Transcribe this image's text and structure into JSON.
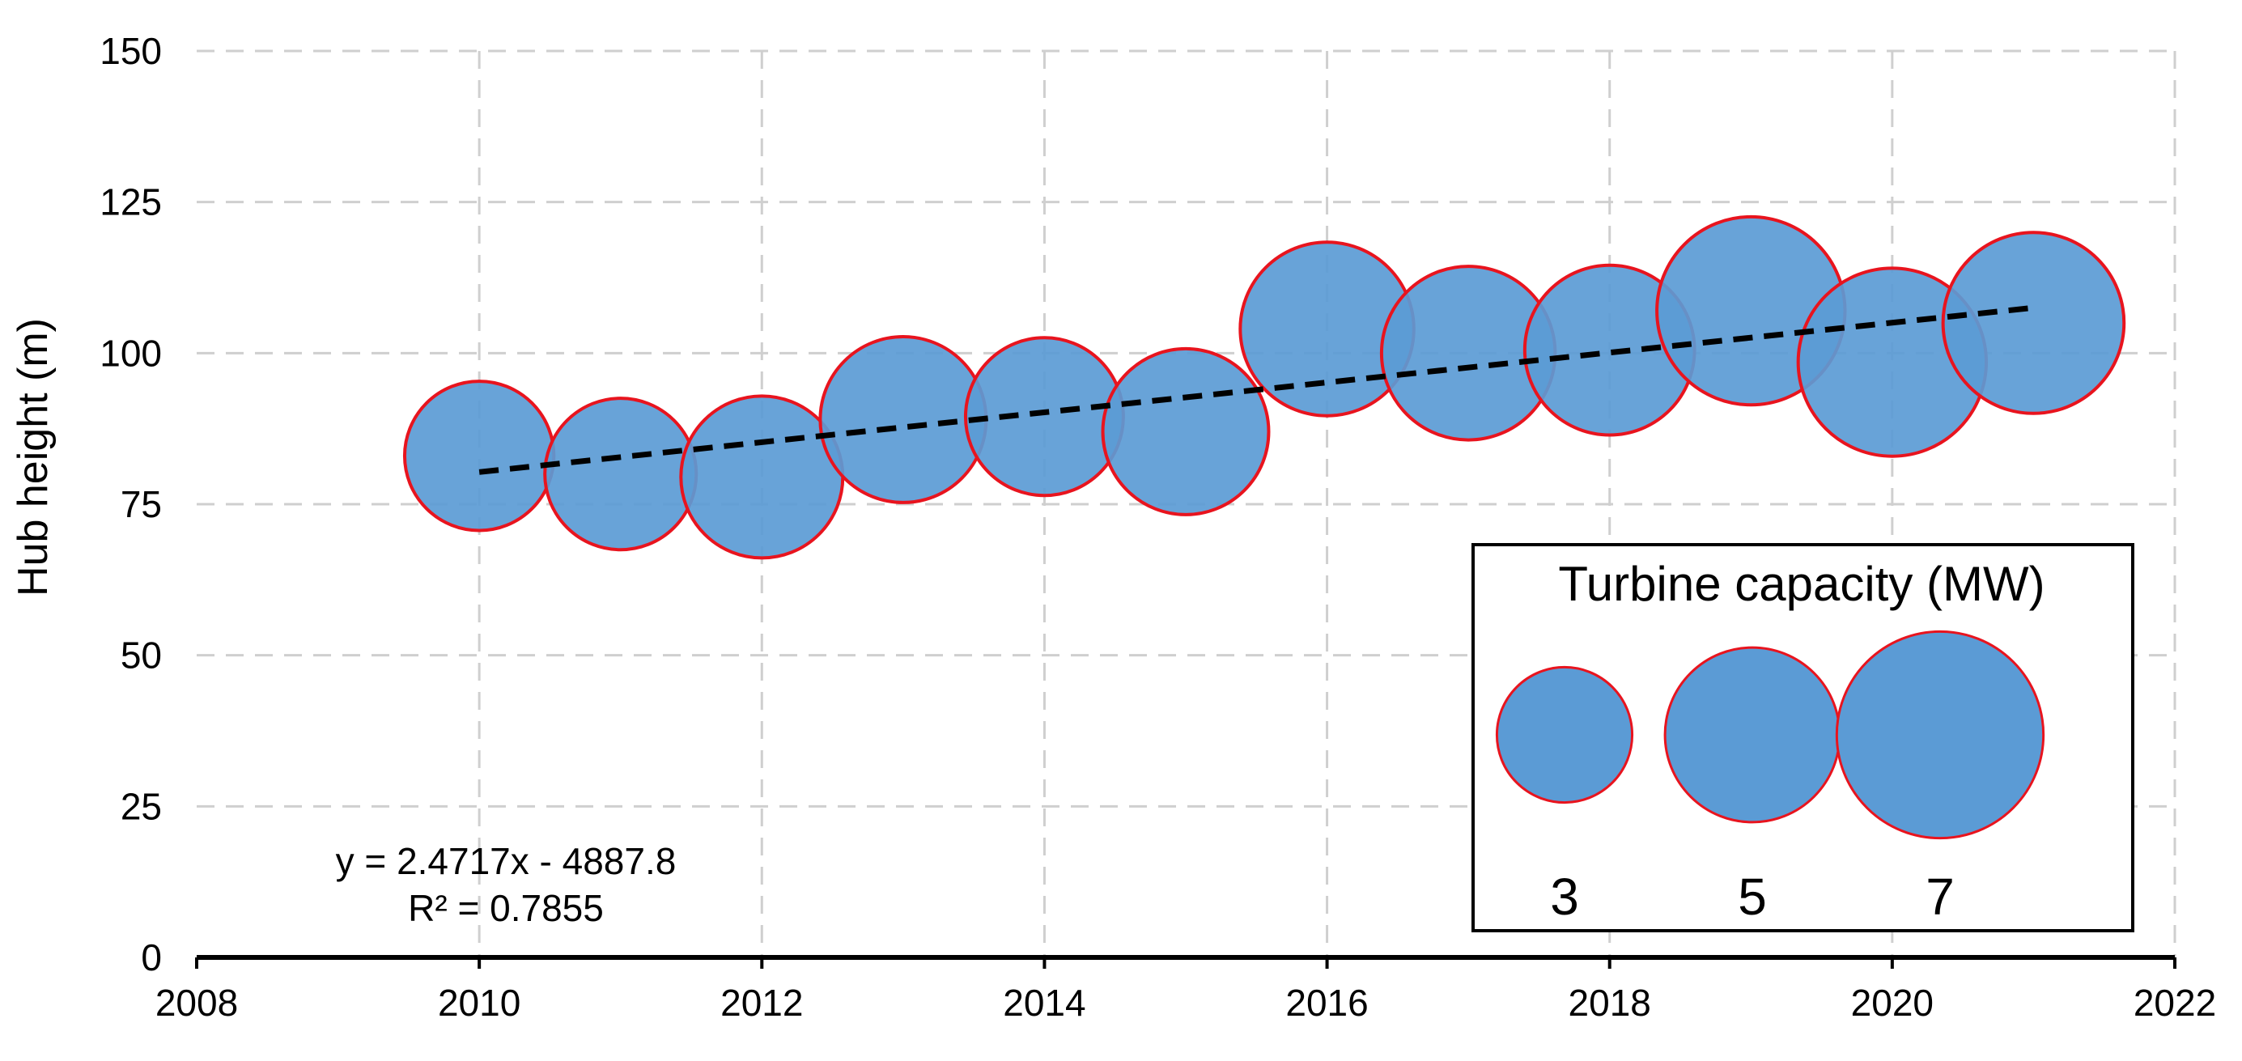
{
  "chart_data": {
    "type": "scatter",
    "variant": "bubble",
    "title": "",
    "xlabel": "",
    "ylabel": "Hub height (m)",
    "xlim": [
      2008,
      2022
    ],
    "ylim": [
      0,
      150
    ],
    "x_ticks": [
      2008,
      2010,
      2012,
      2014,
      2016,
      2018,
      2020,
      2022
    ],
    "y_ticks": [
      0,
      25,
      50,
      75,
      100,
      125,
      150
    ],
    "x_tick_labels": [
      "2008",
      "2010",
      "2012",
      "2014",
      "2016",
      "2018",
      "2020",
      "2022"
    ],
    "y_tick_labels": [
      "0",
      "25",
      "50",
      "75",
      "100",
      "125",
      "150"
    ],
    "grid": true,
    "grid_style": "dashed",
    "series": [
      {
        "x": [
          2010,
          2011,
          2012,
          2013,
          2014,
          2015,
          2016,
          2017,
          2018,
          2019,
          2020,
          2021
        ],
        "y": [
          83,
          80,
          79.5,
          89,
          89.5,
          87,
          104,
          100,
          100.5,
          107,
          98.5,
          105
        ],
        "size": [
          3.4,
          3.5,
          4.0,
          4.2,
          3.8,
          4.2,
          4.6,
          4.6,
          4.4,
          5.4,
          5.4,
          5.0
        ],
        "fill": "#5b9bd5",
        "edge": "#e8141e"
      }
    ],
    "trendline": {
      "type": "linear",
      "slope": 2.4717,
      "intercept": -4887.8,
      "x_range": [
        2010,
        2021
      ],
      "style": "dashed",
      "color": "#000000",
      "equation_label": "y = 2.4717x - 4887.8",
      "r2_label": "R² = 0.7855"
    },
    "size_legend": {
      "title": "Turbine capacity (MW)",
      "entries": [
        {
          "value": 3,
          "label": "3"
        },
        {
          "value": 5,
          "label": "5"
        },
        {
          "value": 7,
          "label": "7"
        }
      ],
      "placement": "bottom-right"
    }
  }
}
